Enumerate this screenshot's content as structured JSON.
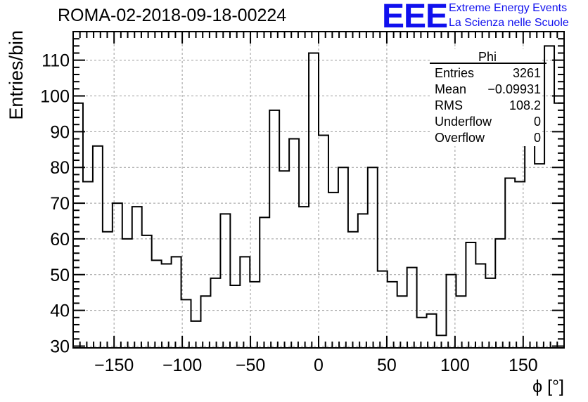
{
  "header": {
    "title": "ROMA-02-2018-09-18-00224",
    "logo_text": "EEE",
    "logo_line1": "Extreme Energy Events",
    "logo_line2": "La Scienza nelle Scuole",
    "logo_color": "#1010ee"
  },
  "stats_box": {
    "title": "Phi",
    "rows": [
      {
        "label": "Entries",
        "value": "3261"
      },
      {
        "label": "Mean",
        "value": "−0.09931"
      },
      {
        "label": "RMS",
        "value": "108.2"
      },
      {
        "label": "Underflow",
        "value": "0"
      },
      {
        "label": "Overflow",
        "value": "0"
      }
    ]
  },
  "chart_data": {
    "type": "histogram",
    "title": "ROMA-02-2018-09-18-00224",
    "xlabel": "ϕ [°]",
    "ylabel": "Entries/bin",
    "xlim": [
      -180,
      180
    ],
    "ylim": [
      29.5,
      118
    ],
    "bin_edges_start": -180,
    "bin_width": 7.2,
    "values": [
      98,
      76,
      86,
      62,
      70,
      60,
      69,
      61,
      54,
      53,
      55,
      43,
      37,
      44,
      49,
      67,
      47,
      55,
      48,
      66,
      96,
      79,
      88,
      69,
      112,
      89,
      73,
      80,
      62,
      67,
      80,
      51,
      48,
      44,
      52,
      38,
      39,
      33,
      50,
      44,
      59,
      53,
      49,
      60,
      77,
      76,
      110,
      81,
      114,
      98
    ],
    "x_ticks": [
      -150,
      -100,
      -50,
      0,
      50,
      100,
      150
    ],
    "x_tick_labels": [
      "−150",
      "−100",
      "−50",
      "0",
      "50",
      "100",
      "150"
    ],
    "y_ticks": [
      30,
      40,
      50,
      60,
      70,
      80,
      90,
      100,
      110
    ],
    "y_tick_labels": [
      "30",
      "40",
      "50",
      "60",
      "70",
      "80",
      "90",
      "100",
      "110"
    ],
    "grid": true,
    "line_color": "#000000"
  }
}
